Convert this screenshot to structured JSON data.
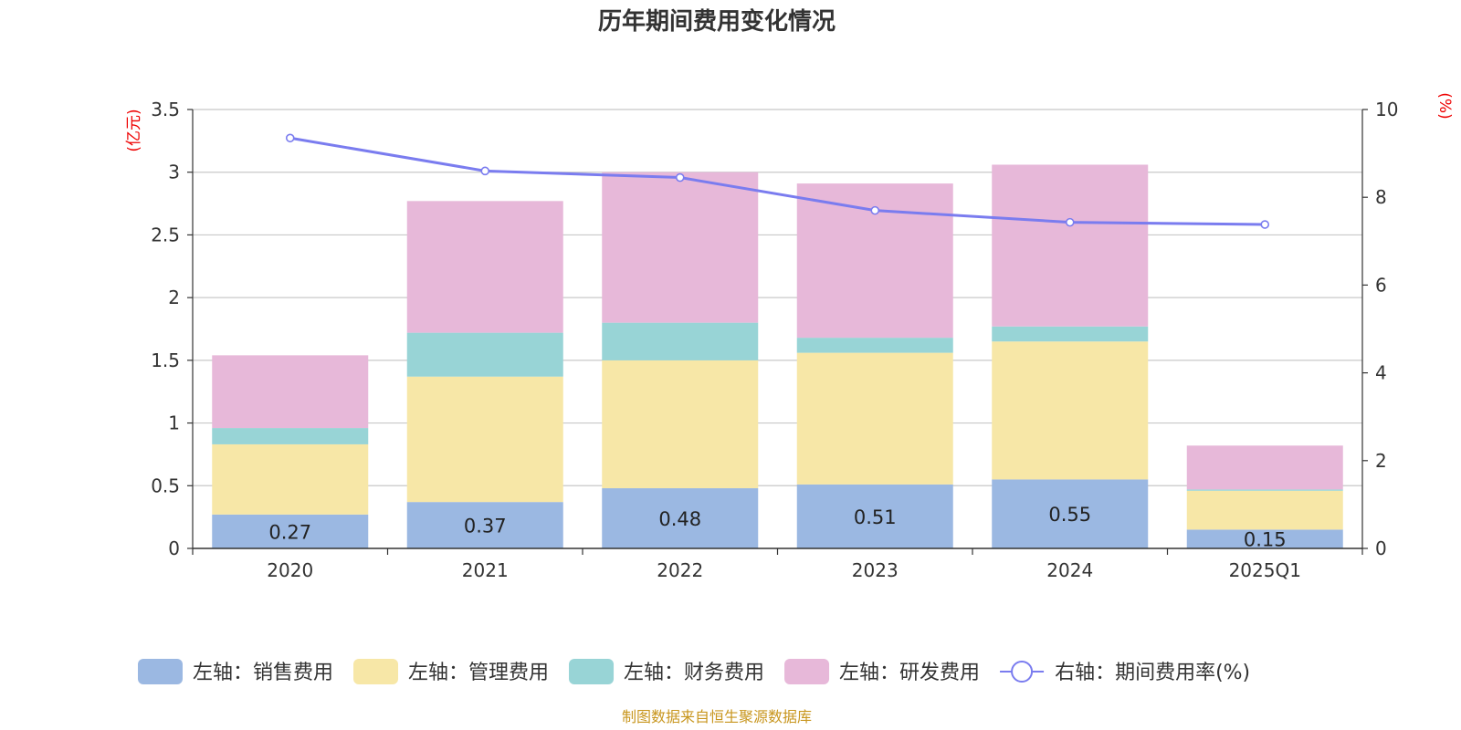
{
  "chart_data": {
    "type": "bar",
    "title": "历年期间费用变化情况",
    "categories": [
      "2020",
      "2021",
      "2022",
      "2023",
      "2024",
      "2025Q1"
    ],
    "left_axis": {
      "unit_label": "(亿元)",
      "ylim": [
        0,
        3.5
      ],
      "ticks": [
        "0",
        "0.5",
        "1",
        "1.5",
        "2",
        "2.5",
        "3",
        "3.5"
      ]
    },
    "right_axis": {
      "unit_label": "(%)",
      "ylim": [
        0,
        10
      ],
      "ticks": [
        "0",
        "2",
        "4",
        "6",
        "8",
        "10"
      ]
    },
    "grid": true,
    "legend_position": "bottom",
    "series": [
      {
        "name": "左轴：销售费用",
        "axis": "left",
        "stack": "cost",
        "color": "#9bb8e2",
        "values": [
          0.27,
          0.37,
          0.48,
          0.51,
          0.55,
          0.15
        ],
        "labels": [
          "0.27",
          "0.37",
          "0.48",
          "0.51",
          "0.55",
          "0.15"
        ]
      },
      {
        "name": "左轴：管理费用",
        "axis": "left",
        "stack": "cost",
        "color": "#f7e7a7",
        "values": [
          0.56,
          1.0,
          1.02,
          1.05,
          1.1,
          0.31
        ]
      },
      {
        "name": "左轴：财务费用",
        "axis": "left",
        "stack": "cost",
        "color": "#98d4d6",
        "values": [
          0.13,
          0.35,
          0.3,
          0.12,
          0.12,
          0.01
        ]
      },
      {
        "name": "左轴：研发费用",
        "axis": "left",
        "stack": "cost",
        "color": "#e7b8d9",
        "values": [
          0.58,
          1.05,
          1.2,
          1.23,
          1.29,
          0.35
        ]
      },
      {
        "name": "右轴：期间费用率(%)",
        "axis": "right",
        "type": "line",
        "color": "#7a7cef",
        "values": [
          9.35,
          8.6,
          8.45,
          7.7,
          7.43,
          7.38
        ]
      }
    ],
    "source": "制图数据来自恒生聚源数据库"
  }
}
